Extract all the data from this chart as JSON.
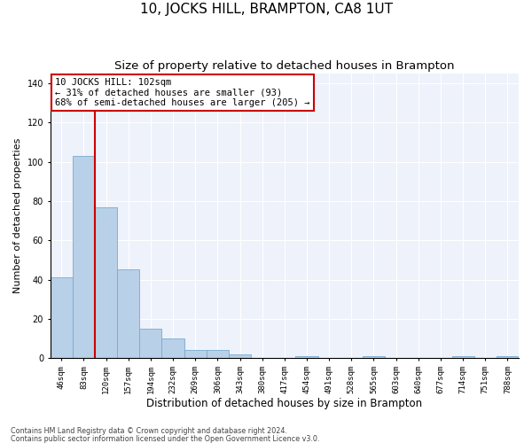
{
  "title": "10, JOCKS HILL, BRAMPTON, CA8 1UT",
  "subtitle": "Size of property relative to detached houses in Brampton",
  "xlabel": "Distribution of detached houses by size in Brampton",
  "ylabel": "Number of detached properties",
  "categories": [
    "46sqm",
    "83sqm",
    "120sqm",
    "157sqm",
    "194sqm",
    "232sqm",
    "269sqm",
    "306sqm",
    "343sqm",
    "380sqm",
    "417sqm",
    "454sqm",
    "491sqm",
    "528sqm",
    "565sqm",
    "603sqm",
    "640sqm",
    "677sqm",
    "714sqm",
    "751sqm",
    "788sqm"
  ],
  "values": [
    41,
    103,
    77,
    45,
    15,
    10,
    4,
    4,
    2,
    0,
    0,
    1,
    0,
    0,
    1,
    0,
    0,
    0,
    1,
    0,
    1
  ],
  "bar_color": "#b8d0e8",
  "bar_edge_color": "#7aaace",
  "red_line_color": "#cc0000",
  "annotation_box_text": "10 JOCKS HILL: 102sqm\n← 31% of detached houses are smaller (93)\n68% of semi-detached houses are larger (205) →",
  "ylim": [
    0,
    145
  ],
  "yticks": [
    0,
    20,
    40,
    60,
    80,
    100,
    120,
    140
  ],
  "footer_line1": "Contains HM Land Registry data © Crown copyright and database right 2024.",
  "footer_line2": "Contains public sector information licensed under the Open Government Licence v3.0.",
  "bg_color": "#eef2fb",
  "title_fontsize": 11,
  "subtitle_fontsize": 9.5,
  "tick_fontsize": 6.5,
  "ylabel_fontsize": 8,
  "xlabel_fontsize": 8.5,
  "annotation_fontsize": 7.5,
  "footer_fontsize": 5.8
}
